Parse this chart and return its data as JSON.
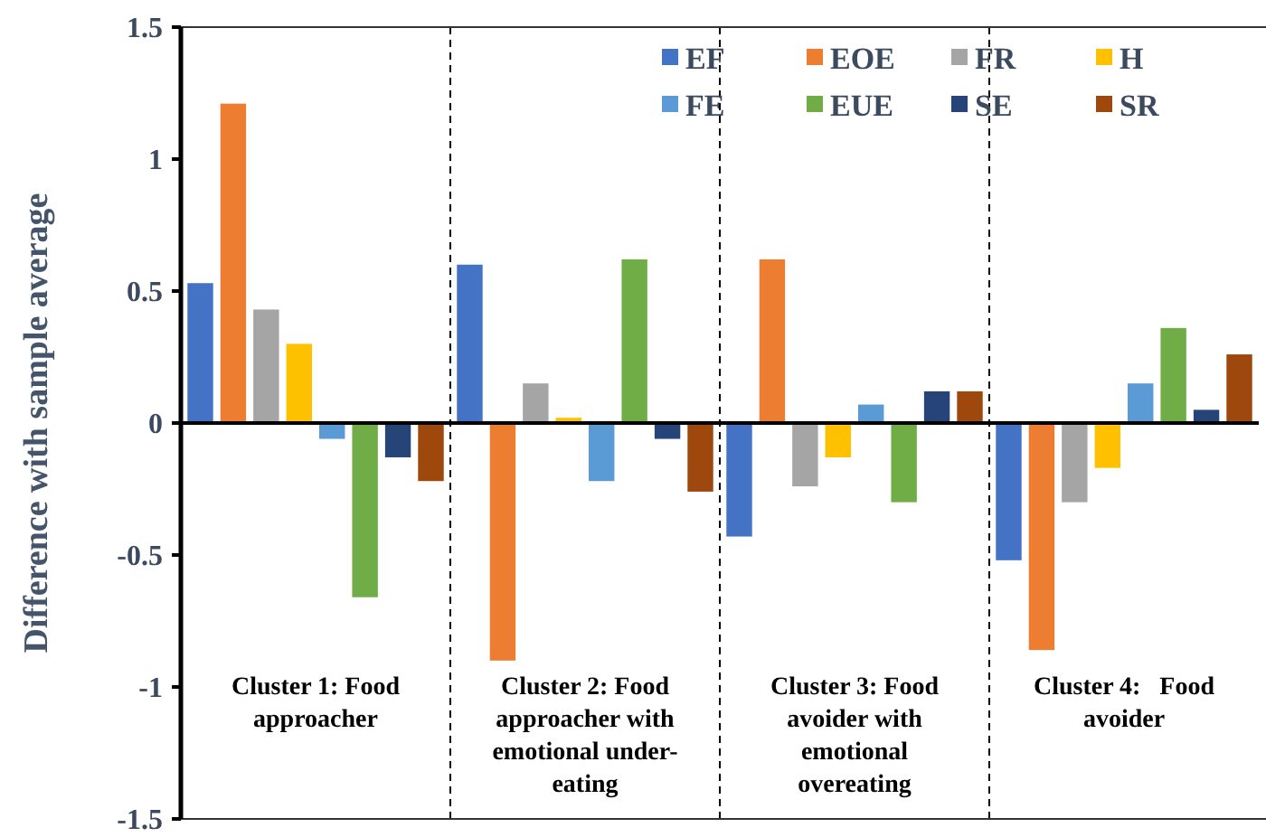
{
  "chart_data": {
    "type": "bar",
    "ylabel": "Difference with sample average",
    "categories": [
      "Cluster 1: Food approacher",
      "Cluster 2: Food approacher with emotional under-eating",
      "Cluster 3: Food avoider with emotional overeating",
      "Cluster 4:   Food avoider"
    ],
    "series": [
      {
        "name": "EF",
        "color": "#4472c4",
        "values": [
          0.53,
          0.6,
          -0.43,
          -0.52
        ]
      },
      {
        "name": "EOE",
        "color": "#ed7d31",
        "values": [
          1.21,
          -0.9,
          0.62,
          -0.86
        ]
      },
      {
        "name": "FR",
        "color": "#a5a5a5",
        "values": [
          0.43,
          0.15,
          -0.24,
          -0.3
        ]
      },
      {
        "name": "H",
        "color": "#ffc000",
        "values": [
          0.3,
          0.02,
          -0.13,
          -0.17
        ]
      },
      {
        "name": "FE",
        "color": "#5b9bd5",
        "values": [
          -0.06,
          -0.22,
          0.07,
          0.15
        ]
      },
      {
        "name": "EUE",
        "color": "#70ad47",
        "values": [
          -0.66,
          0.62,
          -0.3,
          0.36
        ]
      },
      {
        "name": "SE",
        "color": "#264478",
        "values": [
          -0.13,
          -0.06,
          0.12,
          0.05
        ]
      },
      {
        "name": "SR",
        "color": "#9e480e",
        "values": [
          -0.22,
          -0.26,
          0.12,
          0.26
        ]
      }
    ],
    "ylim": [
      -1.5,
      1.5
    ],
    "yticks": [
      -1.5,
      -1,
      -0.5,
      0,
      0.5,
      1,
      1.5
    ],
    "grid": "x",
    "legend": "top right"
  }
}
